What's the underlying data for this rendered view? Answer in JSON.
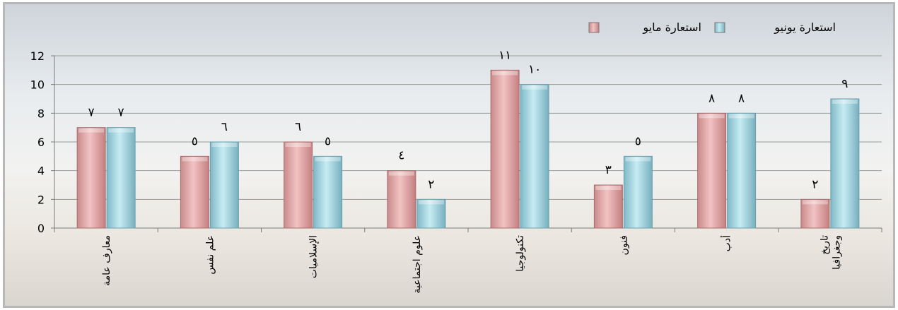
{
  "chart_data": {
    "type": "bar",
    "categories": [
      "معارف عامة",
      "علم نفس",
      "الإسلاميات",
      "علوم اجتماعية",
      "تكنولوجيا",
      "فنون",
      "أدب",
      [
        "تاريخ",
        "وجغرافيا"
      ]
    ],
    "series": [
      {
        "name": "استعارة مايو",
        "color": "#e8a9aa",
        "values": [
          7,
          5,
          6,
          4,
          11,
          3,
          8,
          2
        ],
        "labels": [
          "٧",
          "٥",
          "٦",
          "٤",
          "١١",
          "٣",
          "٨",
          "٢"
        ]
      },
      {
        "name": "استعارة يونيو",
        "color": "#a9dbe6",
        "values": [
          7,
          6,
          5,
          2,
          10,
          5,
          8,
          9
        ],
        "labels": [
          "٧",
          "٦",
          "٥",
          "٢",
          "١٠",
          "٥",
          "٨",
          "٩"
        ]
      }
    ],
    "ylim": [
      0,
      12
    ],
    "yticks": [
      0,
      2,
      4,
      6,
      8,
      10,
      12
    ],
    "grid": true,
    "legend_position": "top-right"
  }
}
